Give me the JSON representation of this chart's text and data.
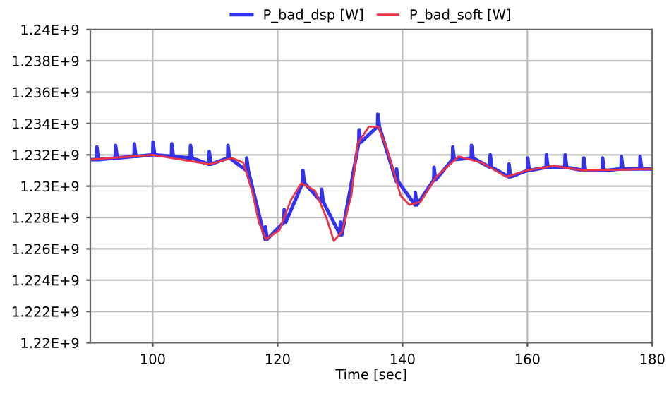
{
  "chart_data": {
    "type": "line",
    "xlabel": "Time [sec]",
    "xlim": [
      90,
      180
    ],
    "xticks": [
      100,
      120,
      140,
      160,
      180
    ],
    "ylim": [
      1220000000,
      1240000000
    ],
    "yticks": [
      {
        "value": 1220000000,
        "label": "1.22E+9"
      },
      {
        "value": 1222000000,
        "label": "1.222E+9"
      },
      {
        "value": 1224000000,
        "label": "1.224E+9"
      },
      {
        "value": 1226000000,
        "label": "1.226E+9"
      },
      {
        "value": 1228000000,
        "label": "1.228E+9"
      },
      {
        "value": 1230000000,
        "label": "1.23E+9"
      },
      {
        "value": 1232000000,
        "label": "1.232E+9"
      },
      {
        "value": 1234000000,
        "label": "1.234E+9"
      },
      {
        "value": 1236000000,
        "label": "1.236E+9"
      },
      {
        "value": 1238000000,
        "label": "1.238E+9"
      },
      {
        "value": 1240000000,
        "label": "1.24E+9"
      }
    ],
    "grid": true,
    "legend": "top",
    "marker": "none",
    "line_style": "solid",
    "series": [
      {
        "name": "P_bad_dsp [W]",
        "color": "#3333ee",
        "x": [
          90,
          91,
          91.05,
          91.3,
          94,
          94.05,
          94.3,
          97,
          97.05,
          97.3,
          100,
          100.05,
          100.3,
          103,
          103.05,
          103.3,
          106,
          106.05,
          106.3,
          109,
          109.05,
          109.3,
          112,
          112.05,
          112.3,
          115,
          115.05,
          115.3,
          118,
          118.05,
          118.3,
          121,
          121.05,
          121.3,
          124,
          124.05,
          124.3,
          127,
          127.05,
          127.3,
          130,
          130.05,
          130.3,
          133,
          133.05,
          133.3,
          136,
          136.05,
          136.3,
          139,
          139.05,
          139.3,
          142,
          142.05,
          142.3,
          145,
          145.05,
          145.3,
          148,
          148.05,
          148.3,
          151,
          151.05,
          151.3,
          154,
          154.05,
          154.3,
          157,
          157.05,
          157.3,
          160,
          160.05,
          160.3,
          163,
          163.05,
          163.3,
          166,
          166.05,
          166.3,
          169,
          169.05,
          169.3,
          172,
          172.05,
          172.3,
          175,
          175.05,
          175.3,
          178,
          178.05,
          178.3,
          180
        ],
        "values": [
          1231700000,
          1231700000,
          1232500000,
          1231700000,
          1231800000,
          1232600000,
          1231800000,
          1231900000,
          1232700000,
          1231900000,
          1232000000,
          1232800000,
          1232000000,
          1231900000,
          1232700000,
          1231900000,
          1231800000,
          1232600000,
          1231800000,
          1231400000,
          1232200000,
          1231400000,
          1231800000,
          1232600000,
          1231800000,
          1231000000,
          1231800000,
          1231000000,
          1226600000,
          1227400000,
          1226600000,
          1227700000,
          1228500000,
          1227700000,
          1230200000,
          1231000000,
          1230200000,
          1229000000,
          1229800000,
          1229000000,
          1226900000,
          1227700000,
          1226900000,
          1232800000,
          1233600000,
          1232800000,
          1233800000,
          1234600000,
          1233800000,
          1230300000,
          1231100000,
          1230300000,
          1228800000,
          1229600000,
          1228800000,
          1230400000,
          1231200000,
          1230400000,
          1231700000,
          1232500000,
          1231700000,
          1231800000,
          1232600000,
          1231800000,
          1231200000,
          1232000000,
          1231200000,
          1230600000,
          1231400000,
          1230600000,
          1231000000,
          1231800000,
          1231000000,
          1231200000,
          1232000000,
          1231200000,
          1231200000,
          1232000000,
          1231200000,
          1231000000,
          1231800000,
          1231000000,
          1231000000,
          1231800000,
          1231000000,
          1231100000,
          1231900000,
          1231100000,
          1231100000,
          1231900000,
          1231100000,
          1231100000
        ]
      },
      {
        "name": "P_bad_soft [W]",
        "color": "#ee3344",
        "x": [
          90,
          100,
          109.1,
          112.7,
          114.5,
          115.9,
          117,
          118.1,
          120.3,
          122.1,
          123.8,
          126,
          127.8,
          129,
          130.3,
          131.8,
          132.8,
          134.6,
          136.1,
          137.5,
          139.7,
          141.1,
          142.9,
          145.4,
          149,
          152.7,
          156.6,
          159.9,
          164.2,
          168.9,
          180
        ],
        "values": [
          1231700000,
          1232000000,
          1231400000,
          1231800000,
          1231500000,
          1229700000,
          1227700000,
          1226600000,
          1227200000,
          1229100000,
          1230200000,
          1229700000,
          1228000000,
          1226500000,
          1227100000,
          1229400000,
          1232700000,
          1233800000,
          1233800000,
          1232400000,
          1229400000,
          1228800000,
          1229000000,
          1230600000,
          1231900000,
          1231500000,
          1230600000,
          1231000000,
          1231300000,
          1231000000,
          1231100000
        ]
      }
    ]
  }
}
